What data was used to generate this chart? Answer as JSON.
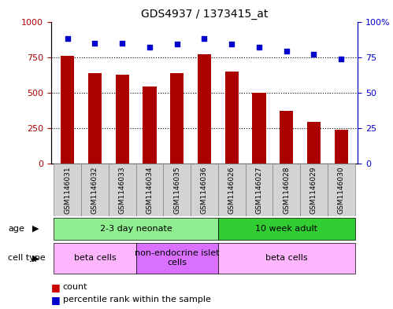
{
  "title": "GDS4937 / 1373415_at",
  "samples": [
    "GSM1146031",
    "GSM1146032",
    "GSM1146033",
    "GSM1146034",
    "GSM1146035",
    "GSM1146036",
    "GSM1146026",
    "GSM1146027",
    "GSM1146028",
    "GSM1146029",
    "GSM1146030"
  ],
  "counts": [
    760,
    635,
    625,
    545,
    640,
    770,
    650,
    500,
    370,
    295,
    240
  ],
  "percentiles": [
    88,
    85,
    85,
    82,
    84,
    88,
    84,
    82,
    79,
    77,
    74
  ],
  "bar_color": "#aa0000",
  "dot_color": "#0000cc",
  "ylim_left": [
    0,
    1000
  ],
  "ylim_right": [
    0,
    100
  ],
  "yticks_left": [
    0,
    250,
    500,
    750,
    1000
  ],
  "ytick_labels_left": [
    "0",
    "250",
    "500",
    "750",
    "1000"
  ],
  "yticks_right": [
    0,
    25,
    50,
    75,
    100
  ],
  "ytick_labels_right": [
    "0",
    "25",
    "50",
    "75",
    "100%"
  ],
  "age_groups": [
    {
      "label": "2-3 day neonate",
      "start": 0,
      "end": 6,
      "color": "#90ee90"
    },
    {
      "label": "10 week adult",
      "start": 6,
      "end": 11,
      "color": "#32cd32"
    }
  ],
  "cell_type_groups": [
    {
      "label": "beta cells",
      "start": 0,
      "end": 3,
      "color": "#ffb6ff"
    },
    {
      "label": "non-endocrine islet\ncells",
      "start": 3,
      "end": 6,
      "color": "#da70ff"
    },
    {
      "label": "beta cells",
      "start": 6,
      "end": 11,
      "color": "#ffb6ff"
    }
  ],
  "legend_count_color": "#cc0000",
  "legend_dot_color": "#0000cc",
  "background_color": "#ffffff",
  "plot_bg_color": "#ffffff",
  "grid_color": "#000000",
  "age_label": "age",
  "cell_type_label": "cell type"
}
